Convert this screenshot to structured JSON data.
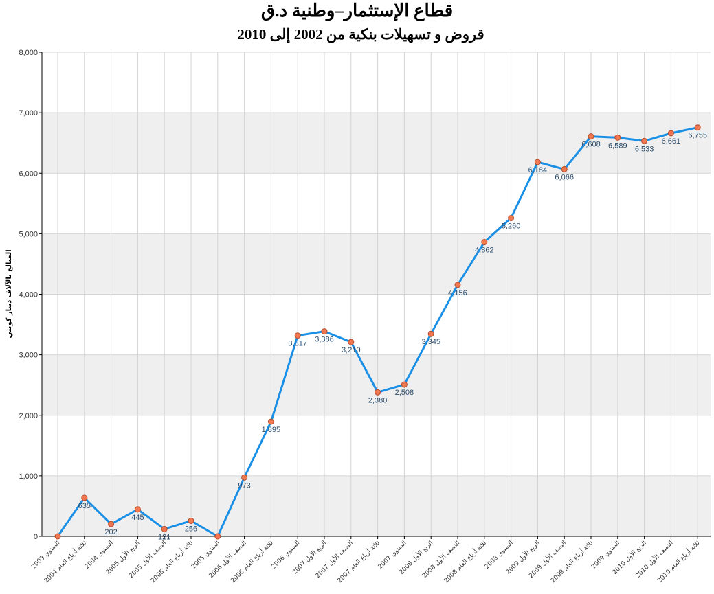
{
  "chart_data": {
    "type": "line",
    "title": "قطاع الإستثمار–وطنية د.ق",
    "subtitle": "قروض و تسهيلات بنكية من 2002 إلى 2010",
    "ylabel": "المبالغ بالآلاف دينار كويتي",
    "xlabel": "",
    "ylim": [
      0,
      8000
    ],
    "yticks": [
      "0",
      "1,000",
      "2,000",
      "3,000",
      "4,000",
      "5,000",
      "6,000",
      "7,000",
      "8,000"
    ],
    "grid": true,
    "categories": [
      "السنوي 2003",
      "ثلاثة أرباع العام 2004",
      "السنوي 2004",
      "الربع الأول 2005",
      "النصف الأول 2005",
      "ثلاثة أرباع العام 2005",
      "السنوي 2005",
      "النصف الأول 2006",
      "ثلاثة أرباع العام 2006",
      "السنوي 2006",
      "الربع الأول 2007",
      "النصف الأول 2007",
      "ثلاثة أرباع العام 2007",
      "السنوي 2007",
      "الربع الأول 2008",
      "النصف الأول 2008",
      "ثلاثة أرباع العام 2008",
      "السنوي 2008",
      "الربع الأول 2009",
      "النصف الأول 2009",
      "ثلاثة أرباع العام 2009",
      "السنوي 2009",
      "الربع الأول 2010",
      "النصف الأول 2010",
      "ثلاثة أرباع العام 2010"
    ],
    "values": [
      0,
      635,
      202,
      445,
      121,
      256,
      0,
      973,
      1895,
      3317,
      3386,
      3210,
      2380,
      2508,
      3345,
      4156,
      4862,
      5260,
      6184,
      6066,
      6608,
      6589,
      6533,
      6661,
      6755
    ],
    "data_labels": [
      "",
      "635",
      "202",
      "445",
      "121",
      "256",
      "",
      "973",
      "1,895",
      "3,317",
      "3,386",
      "3,210",
      "2,380",
      "2,508",
      "3,345",
      "4,156",
      "4,862",
      "5,260",
      "6,184",
      "6,066",
      "6,608",
      "6,589",
      "6,533",
      "6,661",
      "6,755"
    ],
    "colors": {
      "line": "#1a8fe6",
      "marker_fill": "#f07850",
      "marker_stroke": "#b54a2a",
      "band": "#efefef",
      "grid": "#d4d4d4",
      "label": "#2a4d6e"
    }
  }
}
